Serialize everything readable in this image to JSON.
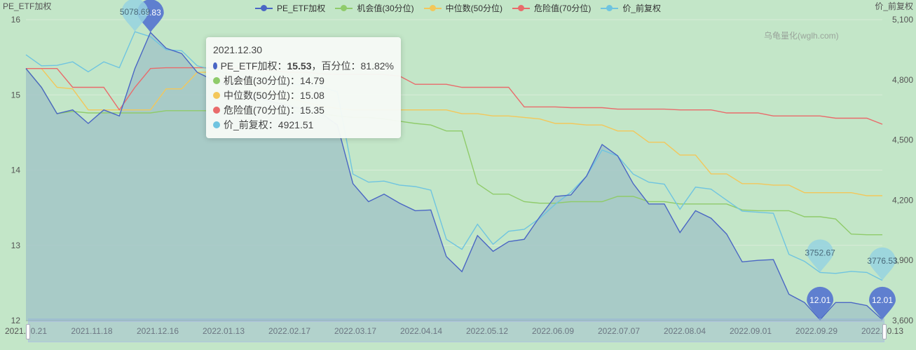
{
  "chart_data": {
    "type": "line",
    "left_axis_name": "PE_ETF加权",
    "right_axis_name": "价_前复权",
    "left_ylim": [
      12,
      16
    ],
    "left_ticks": [
      "12",
      "13",
      "14",
      "15",
      "16"
    ],
    "right_ylim": [
      3600,
      5100
    ],
    "right_ticks": [
      "3,600",
      "3,900",
      "4,200",
      "4,500",
      "4,800",
      "5,100"
    ],
    "x_labels": [
      "2021.10.21",
      "2021.11.18",
      "2021.12.16",
      "2022.01.13",
      "2022.02.17",
      "2022.03.17",
      "2022.04.14",
      "2022.05.12",
      "2022.06.09",
      "2022.07.07",
      "2022.08.04",
      "2022.09.01",
      "2022.09.29",
      "2022.10.13"
    ],
    "watermark": "乌龟量化(wglh.com)",
    "series": [
      {
        "name": "PE_ETF加权",
        "color": "#4a66c4",
        "axis": "left",
        "area": true,
        "values": [
          15.35,
          15.1,
          14.75,
          14.8,
          14.62,
          14.8,
          14.72,
          15.35,
          15.83,
          15.62,
          15.55,
          15.3,
          15.2,
          15.12,
          15.0,
          14.95,
          14.9,
          14.85,
          14.8,
          14.75,
          14.6,
          13.82,
          13.58,
          13.68,
          13.56,
          13.46,
          13.47,
          12.85,
          12.65,
          13.13,
          12.92,
          13.05,
          13.08,
          13.38,
          13.65,
          13.67,
          13.92,
          14.34,
          14.19,
          13.82,
          13.55,
          13.55,
          13.17,
          13.46,
          13.36,
          13.15,
          12.78,
          12.8,
          12.81,
          12.35,
          12.24,
          12.01,
          12.24,
          12.24,
          12.2,
          12.01
        ]
      },
      {
        "name": "机会值(30分位)",
        "color": "#8fcb6a",
        "axis": "left",
        "area": false,
        "values": [
          15.35,
          15.1,
          14.75,
          14.78,
          14.76,
          14.76,
          14.76,
          14.76,
          14.76,
          14.79,
          14.79,
          14.79,
          14.79,
          14.79,
          14.79,
          14.79,
          14.79,
          14.79,
          14.77,
          14.75,
          14.72,
          14.7,
          14.7,
          14.68,
          14.65,
          14.62,
          14.6,
          14.52,
          14.52,
          13.82,
          13.68,
          13.68,
          13.58,
          13.56,
          13.56,
          13.58,
          13.58,
          13.58,
          13.65,
          13.65,
          13.58,
          13.58,
          13.55,
          13.55,
          13.55,
          13.55,
          13.47,
          13.46,
          13.46,
          13.46,
          13.38,
          13.38,
          13.35,
          13.15,
          13.14,
          13.14
        ]
      },
      {
        "name": "中位数(50分位)",
        "color": "#f3c75a",
        "axis": "left",
        "area": false,
        "values": [
          15.35,
          15.35,
          15.1,
          15.08,
          14.8,
          14.8,
          14.8,
          14.8,
          14.8,
          15.08,
          15.08,
          15.3,
          15.3,
          15.3,
          15.2,
          15.1,
          15.0,
          14.95,
          14.9,
          14.85,
          14.82,
          14.8,
          14.8,
          14.8,
          14.8,
          14.8,
          14.8,
          14.8,
          14.75,
          14.75,
          14.72,
          14.72,
          14.7,
          14.68,
          14.62,
          14.62,
          14.6,
          14.6,
          14.52,
          14.52,
          14.37,
          14.37,
          14.2,
          14.2,
          13.95,
          13.95,
          13.82,
          13.82,
          13.8,
          13.8,
          13.7,
          13.7,
          13.7,
          13.7,
          13.66,
          13.66
        ]
      },
      {
        "name": "危险值(70分位)",
        "color": "#e96b6b",
        "axis": "left",
        "area": false,
        "values": [
          15.35,
          15.35,
          15.35,
          15.1,
          15.1,
          15.1,
          14.8,
          15.1,
          15.35,
          15.36,
          15.36,
          15.36,
          15.36,
          15.36,
          15.35,
          15.33,
          15.32,
          15.3,
          15.3,
          15.28,
          15.27,
          15.27,
          15.27,
          15.27,
          15.25,
          15.14,
          15.14,
          15.14,
          15.1,
          15.1,
          15.1,
          15.1,
          14.84,
          14.84,
          14.84,
          14.83,
          14.83,
          14.83,
          14.81,
          14.81,
          14.81,
          14.81,
          14.8,
          14.8,
          14.8,
          14.76,
          14.76,
          14.76,
          14.72,
          14.72,
          14.72,
          14.72,
          14.69,
          14.69,
          14.69,
          14.61
        ]
      },
      {
        "name": "价_前复权",
        "color": "#6fc4e0",
        "axis": "right",
        "area": false,
        "values": [
          4925,
          4870,
          4872,
          4890,
          4840,
          4890,
          4860,
          5040,
          5015,
          4950,
          4945,
          4870,
          4850,
          4830,
          4810,
          4800,
          4790,
          4780,
          4770,
          4765,
          4740,
          4330,
          4290,
          4295,
          4275,
          4268,
          4250,
          4005,
          3955,
          4080,
          3980,
          4045,
          4055,
          4110,
          4180,
          4240,
          4320,
          4450,
          4420,
          4330,
          4290,
          4280,
          4155,
          4265,
          4255,
          4200,
          4145,
          4140,
          4135,
          3930,
          3895,
          3840,
          3835,
          3845,
          3840,
          3800
        ]
      }
    ],
    "annotations": [
      {
        "series": "PE_ETF加权",
        "index": 8,
        "label": "15.83"
      },
      {
        "series": "PE_ETF加权",
        "index": 51,
        "label": "12.01"
      },
      {
        "series": "PE_ETF加权",
        "index": 55,
        "label": "12.01"
      },
      {
        "series": "价_前复权",
        "index": 7,
        "label": "5078.69"
      },
      {
        "series": "价_前复权",
        "index": 51,
        "label": "3752.67"
      },
      {
        "series": "价_前复权",
        "index": 55,
        "label": "3776.53"
      }
    ],
    "tooltip": {
      "date": "2021.12.30",
      "rows": [
        {
          "color": "#4a66c4",
          "label": "PE_ETF加权：",
          "value": "15.53",
          "extra": "，百分位：81.82%"
        },
        {
          "color": "#8fcb6a",
          "label": "机会值(30分位)：",
          "value": "14.79",
          "extra": ""
        },
        {
          "color": "#f3c75a",
          "label": "中位数(50分位)：",
          "value": "15.08",
          "extra": ""
        },
        {
          "color": "#e96b6b",
          "label": "危险值(70分位)：",
          "value": "15.35",
          "extra": ""
        },
        {
          "color": "#6fc4e0",
          "label": "价_前复权：",
          "value": "4921.51",
          "extra": ""
        }
      ]
    }
  }
}
